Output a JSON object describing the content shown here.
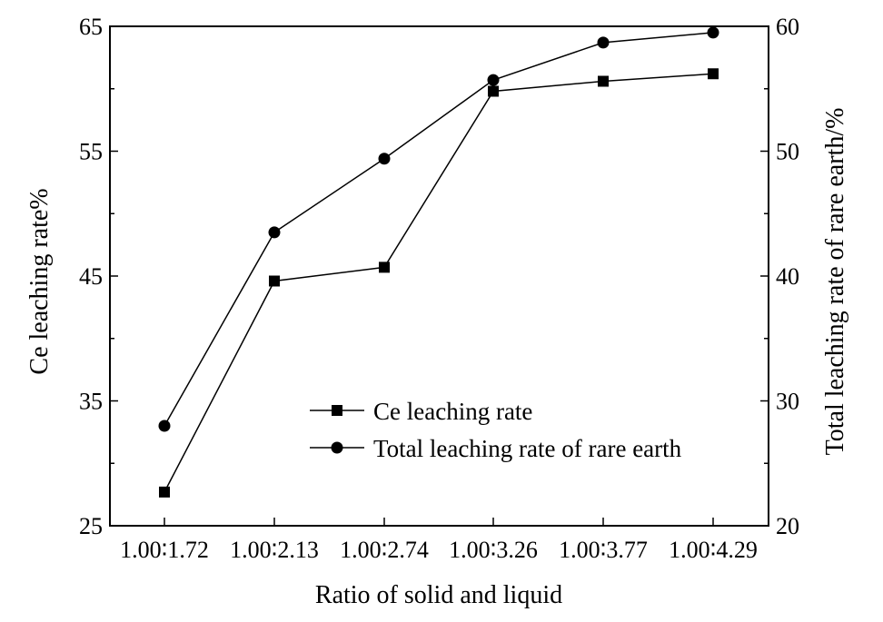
{
  "chart_data": {
    "type": "line",
    "xlabel": "Ratio of solid and liquid",
    "ylabel": "Ce leaching rate%",
    "y2label": "Total leaching rate of rare earth/%",
    "categories": [
      "1.00∶1.72",
      "1.00∶2.13",
      "1.00∶2.74",
      "1.00∶3.26",
      "1.00∶3.77",
      "1.00∶4.29"
    ],
    "ylim": [
      25,
      65
    ],
    "yticks": [
      25,
      35,
      45,
      55,
      65
    ],
    "y2lim": [
      20,
      60
    ],
    "y2ticks": [
      20,
      30,
      40,
      50,
      60
    ],
    "grid": false,
    "legend_position": "lower-center",
    "series": [
      {
        "name": "Ce leaching rate",
        "axis": "left",
        "marker": "square",
        "color": "#000000",
        "values": [
          27.7,
          44.6,
          45.7,
          59.8,
          60.6,
          61.2
        ]
      },
      {
        "name": "Total leaching rate of rare earth",
        "axis": "right",
        "marker": "circle",
        "color": "#000000",
        "values": [
          28.0,
          43.5,
          49.4,
          55.7,
          58.7,
          59.5
        ]
      }
    ]
  }
}
